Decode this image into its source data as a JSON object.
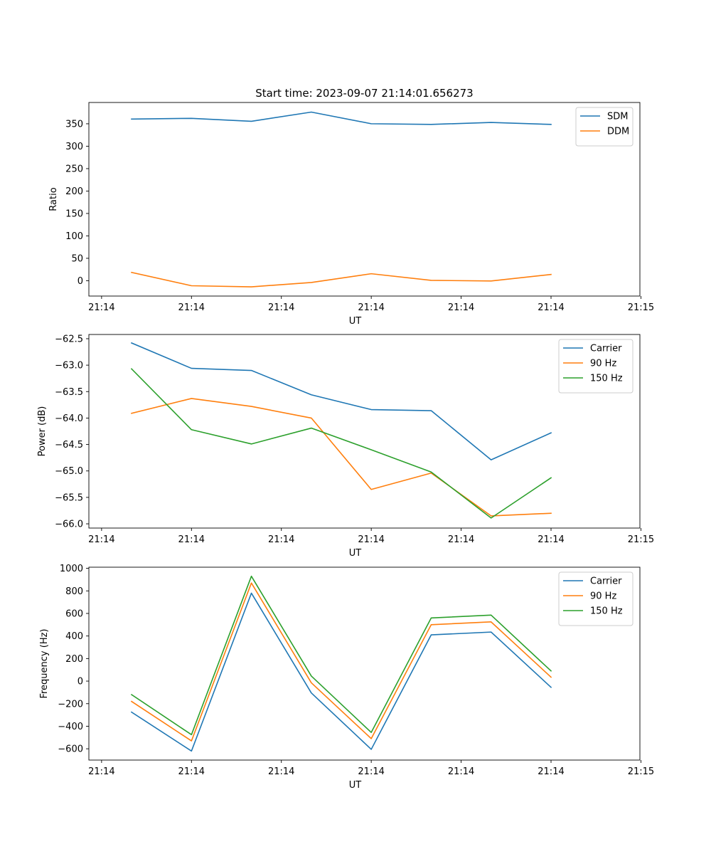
{
  "figure": {
    "title": "Start time: 2023-09-07 21:14:01.656273"
  },
  "colors": {
    "blue": "#1f77b4",
    "orange": "#ff7f0e",
    "green": "#2ca02c"
  },
  "chart_data": [
    {
      "type": "line",
      "title": "Start time: 2023-09-07 21:14:01.656273",
      "xlabel": "UT",
      "ylabel": "Ratio",
      "x": [
        1,
        2,
        3,
        4,
        5,
        6,
        7,
        8
      ],
      "xlim": [
        0.288,
        9.483
      ],
      "xticks": [
        0.5,
        2,
        3.5,
        5,
        6.5,
        8,
        9.5
      ],
      "xtick_labels": [
        "21:14",
        "21:14",
        "21:14",
        "21:14",
        "21:14",
        "21:14",
        "21:15"
      ],
      "ylim": [
        -34.2,
        397.5
      ],
      "yticks": [
        0,
        50,
        100,
        150,
        200,
        250,
        300,
        350
      ],
      "ytick_labels": [
        "0",
        "50",
        "100",
        "150",
        "200",
        "250",
        "300",
        "350"
      ],
      "legend": "top-right",
      "series": [
        {
          "name": "SDM",
          "color": "#1f77b4",
          "values": [
            360.5,
            362.1,
            355.6,
            376.1,
            350.1,
            348.6,
            352.9,
            348.6
          ]
        },
        {
          "name": "DDM",
          "color": "#ff7f0e",
          "values": [
            18.5,
            -11.2,
            -13.6,
            -3.9,
            15.6,
            0.8,
            -0.6,
            14.0
          ]
        }
      ]
    },
    {
      "type": "line",
      "title": "",
      "xlabel": "UT",
      "ylabel": "Power (dB)",
      "x": [
        1,
        2,
        3,
        4,
        5,
        6,
        7,
        8
      ],
      "xlim": [
        0.288,
        9.483
      ],
      "xticks": [
        0.5,
        2,
        3.5,
        5,
        6.5,
        8,
        9.5
      ],
      "xtick_labels": [
        "21:14",
        "21:14",
        "21:14",
        "21:14",
        "21:14",
        "21:14",
        "21:15"
      ],
      "ylim": [
        -66.08,
        -62.42
      ],
      "yticks": [
        -62.5,
        -63.0,
        -63.5,
        -64.0,
        -64.5,
        -65.0,
        -65.5,
        -66.0
      ],
      "ytick_labels": [
        "−62.5",
        "−63.0",
        "−63.5",
        "−64.0",
        "−64.5",
        "−65.0",
        "−65.5",
        "−66.0"
      ],
      "legend": "top-right",
      "series": [
        {
          "name": "Carrier",
          "color": "#1f77b4",
          "values": [
            -62.58,
            -63.06,
            -63.1,
            -63.56,
            -63.84,
            -63.86,
            -64.79,
            -64.28
          ]
        },
        {
          "name": "90 Hz",
          "color": "#ff7f0e",
          "values": [
            -63.91,
            -63.63,
            -63.78,
            -64.0,
            -65.35,
            -65.04,
            -65.85,
            -65.8
          ]
        },
        {
          "name": "150 Hz",
          "color": "#2ca02c",
          "values": [
            -63.07,
            -64.22,
            -64.49,
            -64.19,
            -64.6,
            -65.02,
            -65.89,
            -65.13
          ]
        }
      ]
    },
    {
      "type": "line",
      "title": "",
      "xlabel": "UT",
      "ylabel": "Frequency (Hz)",
      "x": [
        1,
        2,
        3,
        4,
        5,
        6,
        7,
        8
      ],
      "xlim": [
        0.288,
        9.483
      ],
      "xticks": [
        0.5,
        2,
        3.5,
        5,
        6.5,
        8,
        9.5
      ],
      "xtick_labels": [
        "21:14",
        "21:14",
        "21:14",
        "21:14",
        "21:14",
        "21:14",
        "21:15"
      ],
      "ylim": [
        -700,
        1010
      ],
      "yticks": [
        -600,
        -400,
        -200,
        0,
        200,
        400,
        600,
        800,
        1000
      ],
      "ytick_labels": [
        "−600",
        "−400",
        "−200",
        "0",
        "200",
        "400",
        "600",
        "800",
        "1000"
      ],
      "legend": "top-right",
      "series": [
        {
          "name": "Carrier",
          "color": "#1f77b4",
          "values": [
            -275,
            -620,
            780,
            -105,
            -605,
            410,
            435,
            -55
          ]
        },
        {
          "name": "90 Hz",
          "color": "#ff7f0e",
          "values": [
            -180,
            -530,
            870,
            -15,
            -510,
            500,
            525,
            35
          ]
        },
        {
          "name": "150 Hz",
          "color": "#2ca02c",
          "values": [
            -120,
            -475,
            930,
            45,
            -455,
            560,
            585,
            90
          ]
        }
      ]
    }
  ]
}
